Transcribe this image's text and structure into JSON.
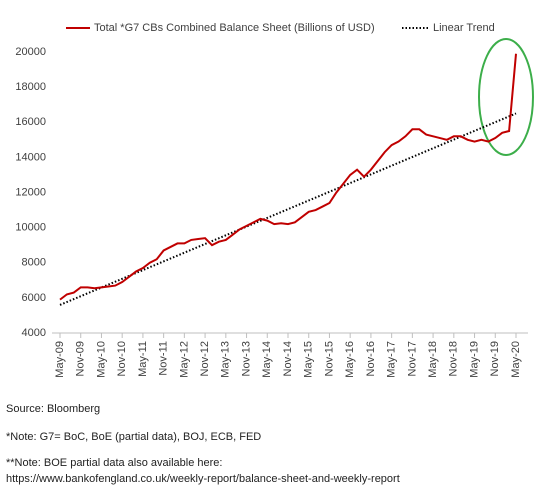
{
  "chart_data": {
    "type": "line",
    "categories": [
      "May-09",
      null,
      null,
      "Nov-09",
      null,
      null,
      "May-10",
      null,
      null,
      "Nov-10",
      null,
      null,
      "May-11",
      null,
      null,
      "Nov-11",
      null,
      null,
      "May-12",
      null,
      null,
      "Nov-12",
      null,
      null,
      "May-13",
      null,
      null,
      "Nov-13",
      null,
      null,
      "May-14",
      null,
      null,
      "Nov-14",
      null,
      null,
      "May-15",
      null,
      null,
      "Nov-15",
      null,
      null,
      "May-16",
      null,
      null,
      "Nov-16",
      null,
      null,
      "May-17",
      null,
      null,
      "Nov-17",
      null,
      null,
      "May-18",
      null,
      null,
      "Nov-18",
      null,
      null,
      "May-19",
      null,
      null,
      "Nov-19",
      null,
      null,
      "May-20"
    ],
    "series": [
      {
        "name": "Total *G7 CBs Combined Balance Sheet (Billions of USD)",
        "color": "#c00000",
        "values": [
          5900,
          6200,
          6300,
          6600,
          6600,
          6550,
          6600,
          6650,
          6700,
          6900,
          7200,
          7500,
          7700,
          8000,
          8200,
          8700,
          8900,
          9100,
          9100,
          9300,
          9350,
          9400,
          9000,
          9200,
          9300,
          9600,
          9900,
          10100,
          10300,
          10500,
          10400,
          10200,
          10250,
          10200,
          10300,
          10600,
          10900,
          11000,
          11200,
          11400,
          12000,
          12500,
          13000,
          13300,
          12900,
          13300,
          13800,
          14300,
          14700,
          14900,
          15200,
          15600,
          15600,
          15300,
          15200,
          15100,
          15000,
          15200,
          15200,
          15000,
          14900,
          15000,
          14900,
          15100,
          15400,
          15500,
          19900
        ]
      }
    ],
    "trend": {
      "name": "Linear Trend",
      "color": "#000000",
      "values": [
        5600,
        16500
      ]
    },
    "ylim": [
      4000,
      20000
    ],
    "yticks": [
      4000,
      6000,
      8000,
      10000,
      12000,
      14000,
      16000,
      18000,
      20000
    ],
    "grid": false
  },
  "notes": {
    "source": "Source: Bloomberg",
    "note1": "*Note: G7= BoC, BoE (partial data), BOJ, ECB, FED",
    "note2": "**Note: BOE partial data also available here:",
    "url": "https://www.bankofengland.co.uk/weekly-report/balance-sheet-and-weekly-report"
  }
}
